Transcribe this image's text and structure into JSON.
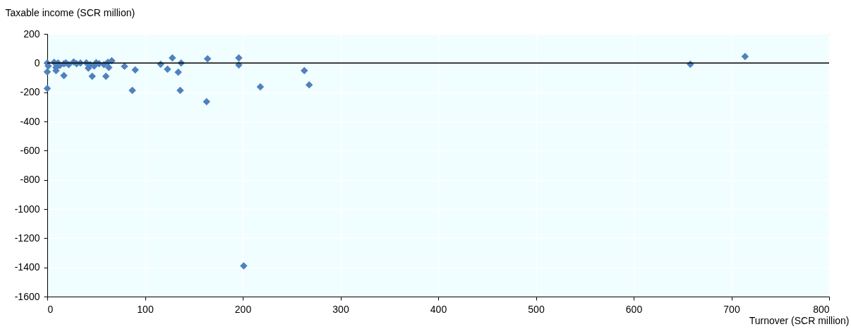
{
  "chart_data": {
    "type": "scatter",
    "xlabel": "Turnover (SCR million)",
    "ylabel": "Taxable income (SCR million)",
    "x": [
      0,
      1,
      7,
      9,
      11,
      13,
      17,
      19,
      22,
      27,
      30,
      34,
      40,
      42,
      44,
      48,
      50,
      53,
      58,
      62,
      63,
      0,
      0,
      9,
      17,
      46,
      60,
      79,
      90,
      87,
      66,
      116,
      123,
      128,
      134,
      136,
      137,
      263,
      268,
      218,
      196,
      196,
      164,
      163,
      201,
      658,
      714
    ],
    "series": [
      {
        "color": "#4f81bd",
        "values": [
          0,
          -20,
          5,
          -30,
          0,
          -15,
          -5,
          2,
          -10,
          8,
          -5,
          0,
          2,
          -35,
          -10,
          -20,
          3,
          -5,
          -10,
          5,
          -30,
          -174,
          -60,
          -52,
          -85,
          -90,
          -90,
          -22,
          -47,
          -187,
          16,
          -8,
          -42,
          35,
          -62,
          -187,
          0,
          -52,
          -149,
          -163,
          35,
          -13,
          30,
          -265,
          -1389,
          -8,
          45
        ]
      }
    ],
    "xlim": [
      0,
      800
    ],
    "xticks": [
      0,
      100,
      200,
      300,
      400,
      500,
      600,
      700,
      800
    ],
    "ylim": [
      -1600,
      200
    ],
    "yticks": [
      -1600,
      -1400,
      -1200,
      -1000,
      -800,
      -600,
      -400,
      -200,
      0,
      200
    ],
    "ref_lines": [
      {
        "axis": "y",
        "value": 0,
        "color": "#000000"
      }
    ],
    "grid": true,
    "marker": "diamond"
  }
}
